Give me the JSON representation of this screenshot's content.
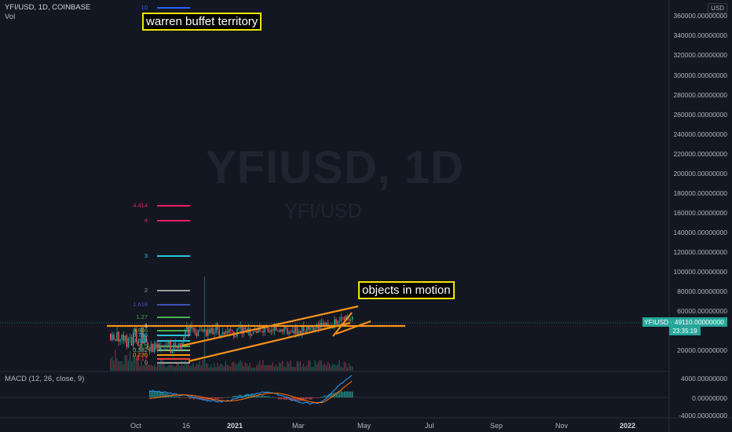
{
  "header": {
    "symbol_line": "YFI/USD, 1D, COINBASE",
    "sub_line": "Vol"
  },
  "watermark": {
    "main": "YFIUSD, 1D",
    "sub": "YFI/USD"
  },
  "annotations": {
    "top": "warren buffet territory",
    "motion": "objects in motion"
  },
  "currency_button": "USD",
  "price_axis": {
    "ticks": [
      "360000.00000000",
      "340000.00000000",
      "320000.00000000",
      "300000.00000000",
      "280000.00000000",
      "260000.00000000",
      "240000.00000000",
      "220000.00000000",
      "200000.00000000",
      "180000.00000000",
      "160000.00000000",
      "140000.00000000",
      "120000.00000000",
      "100000.00000000",
      "80000.00000000",
      "60000.00000000",
      "20000.00000000"
    ]
  },
  "current_price": {
    "label": "YFIUSD · 49110.00000000",
    "countdown": "23:35:19"
  },
  "macd": {
    "label": "MACD (12, 26, close, 9)",
    "ticks": [
      "4000.00000000",
      "0.00000000",
      "-4000.00000000"
    ]
  },
  "time_axis": {
    "ticks": [
      "Oct",
      "16",
      "2021",
      "Mar",
      "May",
      "Jul",
      "Sep",
      "Nov",
      "2022"
    ]
  },
  "fib_levels": [
    {
      "label": "10",
      "color": "#2962ff"
    },
    {
      "label": "4.414",
      "color": "#e91e63"
    },
    {
      "label": "4",
      "color": "#e91e63"
    },
    {
      "label": "3",
      "color": "#26c6da"
    },
    {
      "label": "2",
      "color": "#9e9e9e"
    },
    {
      "label": "1.618",
      "color": "#3f51b5"
    },
    {
      "label": "1.27",
      "color": "#4caf50"
    },
    {
      "label": "1",
      "color": "#ffffff"
    },
    {
      "label": "0.886",
      "color": "#4caf50"
    },
    {
      "label": "0.786",
      "color": "#26c6da"
    },
    {
      "label": "0.618",
      "color": "#26c6da"
    },
    {
      "label": "0.5",
      "color": "#4caf50"
    },
    {
      "label": "0.382",
      "color": "#81c784"
    },
    {
      "label": "0.236",
      "color": "#ff9800"
    },
    {
      "label": "0.17",
      "color": "#f44336"
    },
    {
      "label": "0",
      "color": "#9e9e9e"
    }
  ],
  "colors": {
    "background": "#131722",
    "trendline": "#f7931a",
    "up": "#26a69a",
    "down": "#ef5350",
    "macd_line": "#2196f3",
    "signal_line": "#ff6d00"
  }
}
